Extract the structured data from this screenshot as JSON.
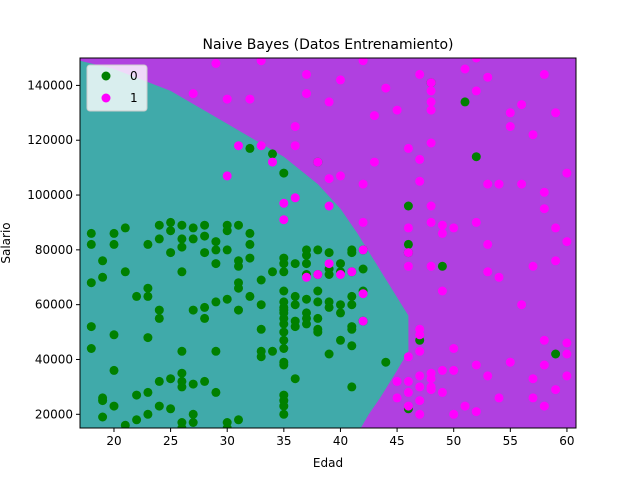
{
  "chart_data": {
    "type": "scatter",
    "title": "Naive Bayes (Datos Entrenamiento)",
    "xlabel": "Edad",
    "ylabel": "Salario",
    "xlim": [
      17,
      60.8
    ],
    "ylim": [
      15000,
      150000
    ],
    "x_ticks": [
      20,
      25,
      30,
      35,
      40,
      45,
      50,
      55,
      60
    ],
    "y_ticks": [
      20000,
      40000,
      60000,
      80000,
      100000,
      120000,
      140000
    ],
    "legend_position": "upper-left",
    "background_regions": [
      {
        "class": "0",
        "color": "#40aaaa"
      },
      {
        "class": "1",
        "color": "#b040e0"
      }
    ],
    "decision_boundary": [
      [
        17,
        149000
      ],
      [
        20,
        146000
      ],
      [
        25,
        138000
      ],
      [
        30,
        126000
      ],
      [
        35,
        114000
      ],
      [
        38,
        104000
      ],
      [
        40,
        95000
      ],
      [
        41.5,
        86000
      ],
      [
        43,
        76000
      ],
      [
        44.5,
        66000
      ],
      [
        46,
        56000
      ],
      [
        46,
        43000
      ],
      [
        45,
        36000
      ],
      [
        43.5,
        26000
      ],
      [
        42.5,
        20000
      ],
      [
        41.8,
        15000
      ]
    ],
    "series": [
      {
        "name": "0",
        "color": "#008000",
        "points": [
          [
            18,
            86000
          ],
          [
            18,
            82000
          ],
          [
            18,
            68000
          ],
          [
            18,
            52000
          ],
          [
            18,
            44000
          ],
          [
            19,
            76000
          ],
          [
            19,
            70000
          ],
          [
            19,
            26000
          ],
          [
            19,
            25000
          ],
          [
            19,
            19000
          ],
          [
            20,
            86000
          ],
          [
            20,
            82000
          ],
          [
            20,
            49000
          ],
          [
            20,
            36000
          ],
          [
            20,
            23000
          ],
          [
            21,
            88000
          ],
          [
            21,
            72000
          ],
          [
            21,
            16000
          ],
          [
            22,
            63000
          ],
          [
            22,
            27000
          ],
          [
            22,
            18000
          ],
          [
            23,
            82000
          ],
          [
            23,
            66000
          ],
          [
            23,
            63000
          ],
          [
            23,
            48000
          ],
          [
            23,
            28000
          ],
          [
            23,
            20000
          ],
          [
            24,
            89000
          ],
          [
            24,
            84000
          ],
          [
            24,
            58000
          ],
          [
            24,
            55000
          ],
          [
            24,
            32000
          ],
          [
            24,
            23000
          ],
          [
            25,
            90000
          ],
          [
            25,
            87000
          ],
          [
            25,
            79000
          ],
          [
            25,
            33000
          ],
          [
            25,
            22000
          ],
          [
            26,
            89000
          ],
          [
            26,
            84000
          ],
          [
            26,
            81000
          ],
          [
            26,
            72000
          ],
          [
            26,
            43000
          ],
          [
            26,
            35000
          ],
          [
            26,
            32000
          ],
          [
            26,
            30000
          ],
          [
            26,
            17000
          ],
          [
            26,
            15000
          ],
          [
            27,
            88000
          ],
          [
            27,
            84000
          ],
          [
            27,
            58000
          ],
          [
            27,
            31000
          ],
          [
            27,
            20000
          ],
          [
            27,
            17000
          ],
          [
            28,
            89000
          ],
          [
            28,
            85000
          ],
          [
            28,
            79000
          ],
          [
            28,
            59000
          ],
          [
            28,
            55000
          ],
          [
            28,
            32000
          ],
          [
            29,
            83000
          ],
          [
            29,
            80000
          ],
          [
            29,
            75000
          ],
          [
            29,
            61000
          ],
          [
            29,
            43000
          ],
          [
            29,
            28000
          ],
          [
            30,
            89000
          ],
          [
            30,
            87000
          ],
          [
            30,
            80000
          ],
          [
            30,
            62000
          ],
          [
            30,
            17000
          ],
          [
            30,
            15000
          ],
          [
            31,
            89000
          ],
          [
            31,
            76000
          ],
          [
            31,
            74000
          ],
          [
            31,
            68000
          ],
          [
            31,
            66000
          ],
          [
            31,
            58000
          ],
          [
            31,
            18000
          ],
          [
            32,
            117000
          ],
          [
            32,
            86000
          ],
          [
            32,
            82000
          ],
          [
            32,
            77000
          ],
          [
            32,
            63000
          ],
          [
            33,
            69000
          ],
          [
            33,
            60000
          ],
          [
            33,
            51000
          ],
          [
            33,
            43000
          ],
          [
            33,
            41000
          ],
          [
            34,
            115000
          ],
          [
            34,
            72000
          ],
          [
            34,
            43000
          ],
          [
            35,
            108000
          ],
          [
            35,
            77000
          ],
          [
            35,
            75000
          ],
          [
            35,
            72000
          ],
          [
            35,
            65000
          ],
          [
            35,
            61000
          ],
          [
            35,
            59000
          ],
          [
            35,
            58000
          ],
          [
            35,
            57000
          ],
          [
            35,
            55000
          ],
          [
            35,
            53000
          ],
          [
            35,
            50000
          ],
          [
            35,
            47000
          ],
          [
            35,
            44000
          ],
          [
            35,
            39000
          ],
          [
            35,
            38000
          ],
          [
            35,
            27000
          ],
          [
            35,
            25000
          ],
          [
            35,
            23000
          ],
          [
            35,
            20000
          ],
          [
            36,
            75000
          ],
          [
            36,
            63000
          ],
          [
            36,
            60000
          ],
          [
            36,
            54000
          ],
          [
            36,
            52000
          ],
          [
            36,
            33000
          ],
          [
            37,
            80000
          ],
          [
            37,
            78000
          ],
          [
            37,
            75000
          ],
          [
            37,
            71000
          ],
          [
            37,
            62000
          ],
          [
            37,
            57000
          ],
          [
            37,
            55000
          ],
          [
            37,
            53000
          ],
          [
            38,
            112000
          ],
          [
            38,
            80000
          ],
          [
            38,
            71000
          ],
          [
            38,
            65000
          ],
          [
            38,
            61000
          ],
          [
            38,
            55000
          ],
          [
            38,
            51000
          ],
          [
            38,
            50000
          ],
          [
            39,
            79000
          ],
          [
            39,
            73000
          ],
          [
            39,
            71000
          ],
          [
            39,
            61000
          ],
          [
            39,
            59000
          ],
          [
            39,
            42000
          ],
          [
            40,
            75000
          ],
          [
            40,
            72000
          ],
          [
            40,
            60000
          ],
          [
            40,
            57000
          ],
          [
            40,
            47000
          ],
          [
            41,
            80000
          ],
          [
            41,
            79000
          ],
          [
            41,
            72000
          ],
          [
            41,
            63000
          ],
          [
            41,
            60000
          ],
          [
            41,
            52000
          ],
          [
            41,
            51000
          ],
          [
            41,
            45000
          ],
          [
            41,
            30000
          ],
          [
            42,
            80000
          ],
          [
            42,
            73000
          ],
          [
            42,
            65000
          ],
          [
            42,
            54000
          ],
          [
            44,
            39000
          ],
          [
            46,
            96000
          ],
          [
            46,
            82000
          ],
          [
            46,
            79000
          ],
          [
            46,
            22000
          ],
          [
            47,
            47000
          ],
          [
            48,
            141000
          ],
          [
            49,
            74000
          ],
          [
            51,
            134000
          ],
          [
            52,
            114000
          ],
          [
            59,
            42000
          ]
        ]
      },
      {
        "name": "1",
        "color": "#ff00ff",
        "points": [
          [
            27,
            137000
          ],
          [
            29,
            148000
          ],
          [
            30,
            135000
          ],
          [
            30,
            107000
          ],
          [
            31,
            118000
          ],
          [
            32,
            135000
          ],
          [
            33,
            149000
          ],
          [
            33,
            118000
          ],
          [
            34,
            112000
          ],
          [
            35,
            97000
          ],
          [
            35,
            91000
          ],
          [
            36,
            125000
          ],
          [
            36,
            118000
          ],
          [
            36,
            99000
          ],
          [
            37,
            144000
          ],
          [
            37,
            137000
          ],
          [
            37,
            70000
          ],
          [
            38,
            112000
          ],
          [
            38,
            71000
          ],
          [
            39,
            134000
          ],
          [
            39,
            106000
          ],
          [
            39,
            96000
          ],
          [
            39,
            75000
          ],
          [
            40,
            142000
          ],
          [
            40,
            107000
          ],
          [
            40,
            71000
          ],
          [
            41,
            72000
          ],
          [
            42,
            149000
          ],
          [
            42,
            104000
          ],
          [
            42,
            90000
          ],
          [
            42,
            80000
          ],
          [
            42,
            64000
          ],
          [
            42,
            54000
          ],
          [
            43,
            129000
          ],
          [
            43,
            112000
          ],
          [
            44,
            139000
          ],
          [
            45,
            131000
          ],
          [
            45,
            32000
          ],
          [
            45,
            26000
          ],
          [
            46,
            117000
          ],
          [
            46,
            88000
          ],
          [
            46,
            79000
          ],
          [
            46,
            74000
          ],
          [
            46,
            41000
          ],
          [
            46,
            32000
          ],
          [
            46,
            28000
          ],
          [
            46,
            23000
          ],
          [
            47,
            144000
          ],
          [
            47,
            113000
          ],
          [
            47,
            105000
          ],
          [
            47,
            51000
          ],
          [
            47,
            49000
          ],
          [
            47,
            43000
          ],
          [
            47,
            34000
          ],
          [
            47,
            30000
          ],
          [
            47,
            25000
          ],
          [
            47,
            20000
          ],
          [
            48,
            141000
          ],
          [
            48,
            138000
          ],
          [
            48,
            134000
          ],
          [
            48,
            131000
          ],
          [
            48,
            119000
          ],
          [
            48,
            96000
          ],
          [
            48,
            90000
          ],
          [
            48,
            74000
          ],
          [
            48,
            35000
          ],
          [
            48,
            33000
          ],
          [
            48,
            30000
          ],
          [
            48,
            29000
          ],
          [
            49,
            89000
          ],
          [
            49,
            86000
          ],
          [
            49,
            65000
          ],
          [
            49,
            36000
          ],
          [
            49,
            28000
          ],
          [
            50,
            88000
          ],
          [
            50,
            44000
          ],
          [
            50,
            36000
          ],
          [
            50,
            20000
          ],
          [
            51,
            146000
          ],
          [
            51,
            23000
          ],
          [
            52,
            150000
          ],
          [
            52,
            138000
          ],
          [
            52,
            90000
          ],
          [
            52,
            38000
          ],
          [
            52,
            21000
          ],
          [
            53,
            143000
          ],
          [
            53,
            104000
          ],
          [
            53,
            82000
          ],
          [
            53,
            72000
          ],
          [
            53,
            34000
          ],
          [
            54,
            104000
          ],
          [
            54,
            70000
          ],
          [
            54,
            26000
          ],
          [
            55,
            130000
          ],
          [
            55,
            125000
          ],
          [
            55,
            39000
          ],
          [
            56,
            133000
          ],
          [
            56,
            104000
          ],
          [
            56,
            60000
          ],
          [
            57,
            122000
          ],
          [
            57,
            74000
          ],
          [
            57,
            33000
          ],
          [
            57,
            26000
          ],
          [
            58,
            144000
          ],
          [
            58,
            101000
          ],
          [
            58,
            95000
          ],
          [
            58,
            47000
          ],
          [
            58,
            38000
          ],
          [
            58,
            23000
          ],
          [
            59,
            130000
          ],
          [
            59,
            88000
          ],
          [
            59,
            76000
          ],
          [
            59,
            29000
          ],
          [
            60,
            108000
          ],
          [
            60,
            83000
          ],
          [
            60,
            46000
          ],
          [
            60,
            42000
          ],
          [
            60,
            34000
          ]
        ]
      }
    ]
  }
}
